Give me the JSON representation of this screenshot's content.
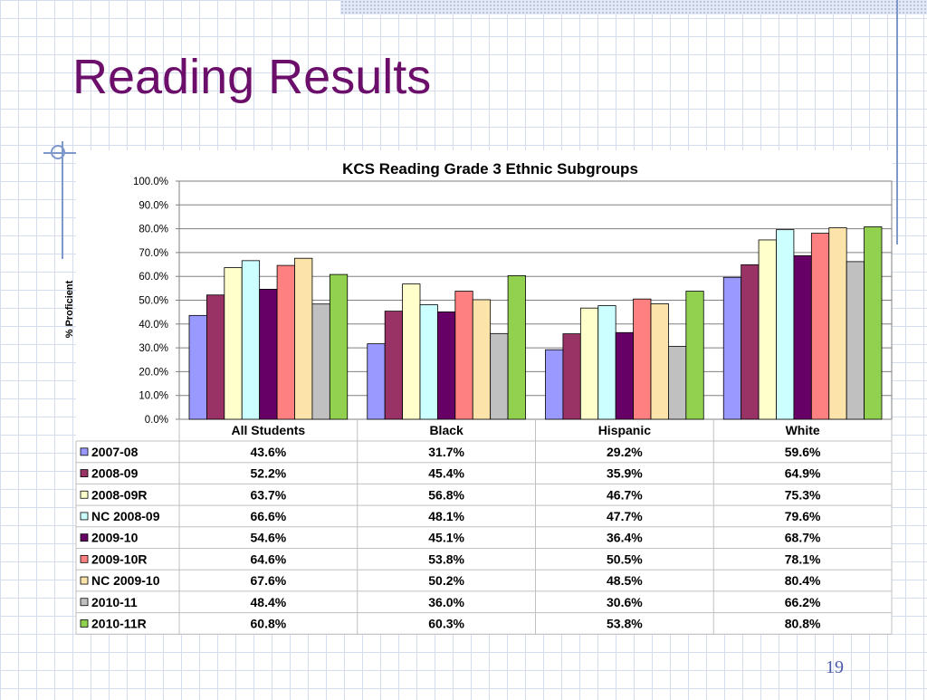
{
  "slide": {
    "title": "Reading Results",
    "page_number": "19"
  },
  "colors": {
    "title": "#6b0f6b",
    "accent": "#7f98cc"
  },
  "chart_data": {
    "type": "bar",
    "title": "KCS Reading Grade 3 Ethnic Subgroups",
    "xlabel": "",
    "ylabel": "% Proficient",
    "ylim": [
      0,
      100
    ],
    "yticks": [
      "0.0%",
      "10.0%",
      "20.0%",
      "30.0%",
      "40.0%",
      "50.0%",
      "60.0%",
      "70.0%",
      "80.0%",
      "90.0%",
      "100.0%"
    ],
    "grid": true,
    "legend": "data-table",
    "categories": [
      "All Students",
      "Black",
      "Hispanic",
      "White"
    ],
    "series": [
      {
        "name": "2007-08",
        "color": "#9999ff",
        "values": [
          43.6,
          31.7,
          29.2,
          59.6
        ],
        "labels": [
          "43.6%",
          "31.7%",
          "29.2%",
          "59.6%"
        ]
      },
      {
        "name": "2008-09",
        "color": "#993366",
        "values": [
          52.2,
          45.4,
          35.9,
          64.9
        ],
        "labels": [
          "52.2%",
          "45.4%",
          "35.9%",
          "64.9%"
        ]
      },
      {
        "name": "2008-09R",
        "color": "#ffffcc",
        "values": [
          63.7,
          56.8,
          46.7,
          75.3
        ],
        "labels": [
          "63.7%",
          "56.8%",
          "46.7%",
          "75.3%"
        ]
      },
      {
        "name": "NC 2008-09",
        "color": "#ccffff",
        "values": [
          66.6,
          48.1,
          47.7,
          79.6
        ],
        "labels": [
          "66.6%",
          "48.1%",
          "47.7%",
          "79.6%"
        ]
      },
      {
        "name": "2009-10",
        "color": "#660066",
        "values": [
          54.6,
          45.1,
          36.4,
          68.7
        ],
        "labels": [
          "54.6%",
          "45.1%",
          "36.4%",
          "68.7%"
        ]
      },
      {
        "name": "2009-10R",
        "color": "#ff8080",
        "values": [
          64.6,
          53.8,
          50.5,
          78.1
        ],
        "labels": [
          "64.6%",
          "53.8%",
          "50.5%",
          "78.1%"
        ]
      },
      {
        "name": "NC 2009-10",
        "color": "#fbe3a9",
        "values": [
          67.6,
          50.2,
          48.5,
          80.4
        ],
        "labels": [
          "67.6%",
          "50.2%",
          "48.5%",
          "80.4%"
        ]
      },
      {
        "name": "2010-11",
        "color": "#c0c0c0",
        "values": [
          48.4,
          36.0,
          30.6,
          66.2
        ],
        "labels": [
          "48.4%",
          "36.0%",
          "30.6%",
          "66.2%"
        ]
      },
      {
        "name": "2010-11R",
        "color": "#92d050",
        "values": [
          60.8,
          60.3,
          53.8,
          80.8
        ],
        "labels": [
          "60.8%",
          "60.3%",
          "53.8%",
          "80.8%"
        ]
      }
    ]
  }
}
